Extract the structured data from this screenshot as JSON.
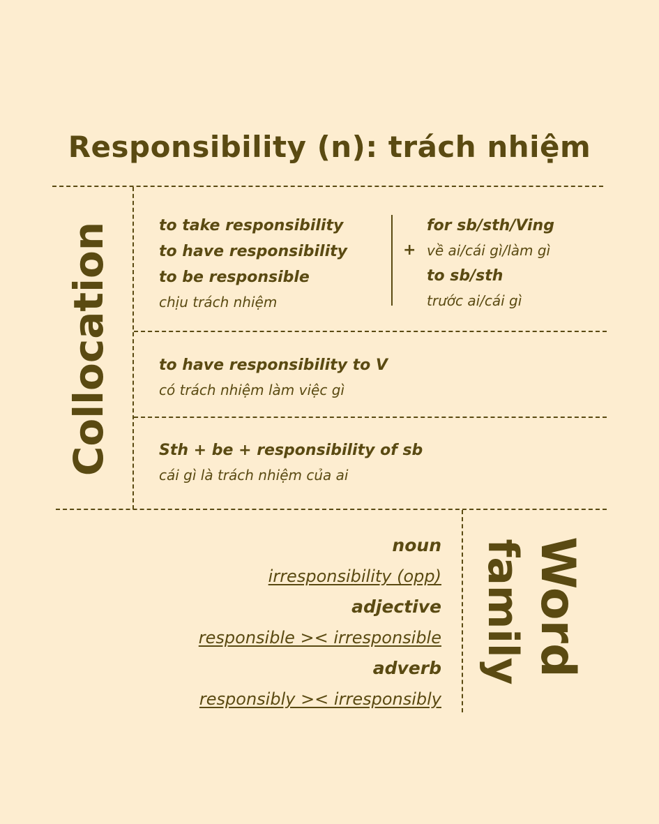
{
  "title": "Responsibility (n): trách nhiệm",
  "collocation": {
    "side_label": "Collocation",
    "block1": {
      "left_lines": [
        "to take responsibility",
        "to have responsibility",
        "to be responsible"
      ],
      "left_meaning": "chịu trách nhiệm",
      "plus": "+",
      "right": {
        "for_phrase": "for sb/sth/Ving",
        "for_meaning": "về ai/cái gì/làm gì",
        "to_phrase": "to sb/sth",
        "to_meaning": "trước ai/cái gì"
      }
    },
    "block2": {
      "phrase": "to have responsibility to V",
      "meaning": "có trách nhiệm làm việc gì"
    },
    "block3": {
      "phrase": "Sth + be + responsibility of sb",
      "meaning": "cái gì là trách nhiệm của ai"
    }
  },
  "word_family": {
    "side_label_line1": "Word",
    "side_label_line2": "family",
    "entries": [
      {
        "pos": "noun",
        "words": "irresponsibility (opp)"
      },
      {
        "pos": "adjective",
        "words": "responsible >< irresponsible"
      },
      {
        "pos": "adverb",
        "words": "responsibly >< irresponsibly"
      }
    ]
  }
}
